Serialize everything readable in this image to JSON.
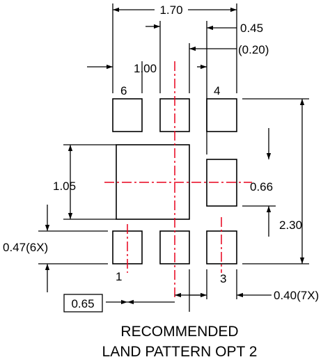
{
  "dimensions": {
    "width_total": "1.70",
    "pad_width": "0.45",
    "pad_gap_ref": "(0.20)",
    "inner_pitch": "1.00",
    "center_pad_height": "1.05",
    "side_pad_height": "0.66",
    "pad_height_note": "0.47(6X)",
    "height_total": "2.30",
    "pin_pitch": "0.65",
    "pad_width_note": "0.40(7X)"
  },
  "pins": {
    "pin1": "1",
    "pin3": "3",
    "pin4": "4",
    "pin6": "6"
  },
  "caption": {
    "line1": "RECOMMENDED",
    "line2": "LAND PATTERN OPT 2"
  },
  "colors": {
    "outline": "#000000",
    "centerline": "#e8001c"
  }
}
